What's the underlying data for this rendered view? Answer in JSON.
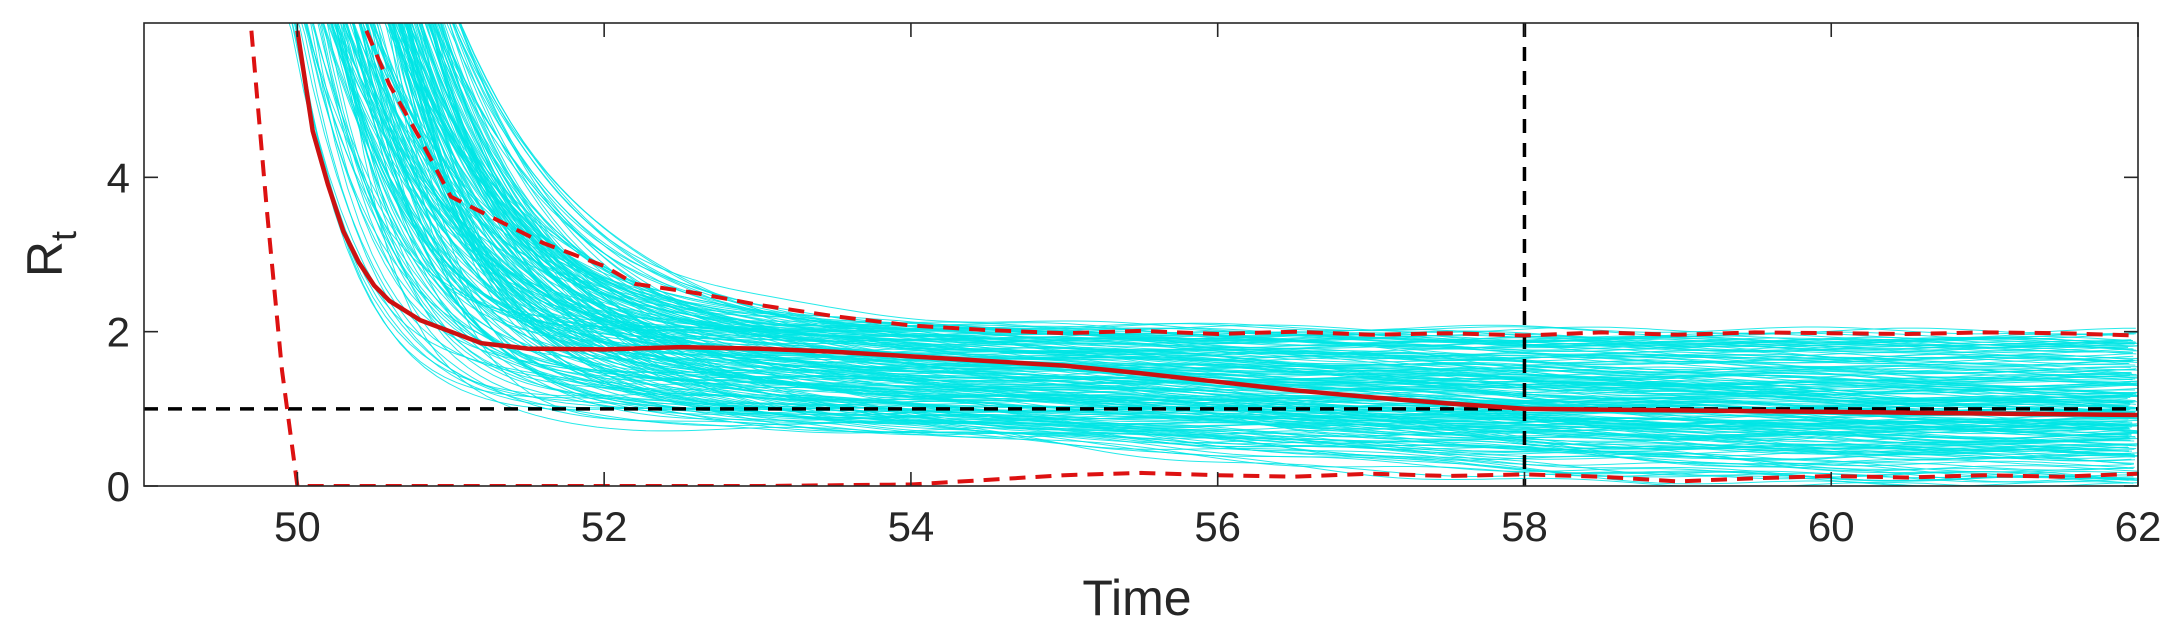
{
  "chart_data": {
    "type": "line",
    "xlabel": "Time",
    "ylabel": "R",
    "ylabel_subscript": "t",
    "xlim": [
      49,
      62
    ],
    "ylim": [
      0,
      6
    ],
    "xticks": [
      50,
      52,
      54,
      56,
      58,
      60,
      62
    ],
    "yticks": [
      0,
      2,
      4
    ],
    "xtick_labels": [
      "50",
      "52",
      "54",
      "56",
      "58",
      "60",
      "62"
    ],
    "ytick_labels": [
      "0",
      "2",
      "4"
    ],
    "grid": false,
    "reference_lines": {
      "horizontal_y": 1,
      "vertical_x": 58,
      "color": "#000000"
    },
    "ensemble": {
      "color": "#00e5e5",
      "count": 220
    },
    "series": [
      {
        "role": "median",
        "color": "#cc1111",
        "style": "solid",
        "x": [
          50.0,
          50.1,
          50.2,
          50.3,
          50.4,
          50.5,
          50.6,
          50.8,
          51.0,
          51.2,
          51.5,
          52.0,
          52.5,
          53.0,
          53.5,
          54.0,
          54.5,
          55.0,
          55.5,
          56.0,
          56.5,
          57.0,
          57.5,
          58.0,
          58.5,
          59.0,
          59.5,
          60.0,
          60.5,
          61.0,
          61.5,
          62.0
        ],
        "values": [
          5.9,
          4.6,
          3.9,
          3.3,
          2.9,
          2.6,
          2.4,
          2.15,
          2.0,
          1.85,
          1.78,
          1.77,
          1.8,
          1.78,
          1.74,
          1.68,
          1.62,
          1.56,
          1.46,
          1.35,
          1.24,
          1.15,
          1.07,
          1.0,
          0.99,
          0.98,
          0.97,
          0.96,
          0.95,
          0.94,
          0.93,
          0.92
        ]
      },
      {
        "role": "upper-bound",
        "color": "#dd1111",
        "style": "dashed",
        "x": [
          50.45,
          50.6,
          50.8,
          51.0,
          51.3,
          51.6,
          52.0,
          52.2,
          52.6,
          53.0,
          53.5,
          54.0,
          54.5,
          55.0,
          55.5,
          56.0,
          56.5,
          57.0,
          57.5,
          58.0,
          58.5,
          59.0,
          59.5,
          60.0,
          60.5,
          61.0,
          61.5,
          62.0
        ],
        "values": [
          5.9,
          5.2,
          4.5,
          3.75,
          3.45,
          3.15,
          2.85,
          2.62,
          2.5,
          2.35,
          2.2,
          2.08,
          2.02,
          1.98,
          2.01,
          1.97,
          2.0,
          1.96,
          1.98,
          1.95,
          1.99,
          1.96,
          1.99,
          1.98,
          1.97,
          1.99,
          1.98,
          1.95
        ]
      },
      {
        "role": "lower-bound",
        "color": "#dd1111",
        "style": "dashed",
        "x": [
          49.7,
          49.8,
          49.9,
          50.0,
          50.1,
          50.5,
          51.0,
          52.0,
          53.0,
          54.0,
          55.0,
          55.5,
          56.0,
          56.5,
          57.0,
          57.5,
          58.0,
          58.5,
          59.0,
          59.5,
          60.0,
          60.5,
          61.0,
          61.5,
          62.0
        ],
        "values": [
          5.9,
          3.6,
          1.5,
          0.0,
          0.0,
          0.0,
          0.0,
          0.0,
          0.0,
          0.02,
          0.14,
          0.17,
          0.14,
          0.12,
          0.16,
          0.13,
          0.15,
          0.12,
          0.06,
          0.1,
          0.13,
          0.11,
          0.14,
          0.12,
          0.16
        ]
      }
    ]
  }
}
